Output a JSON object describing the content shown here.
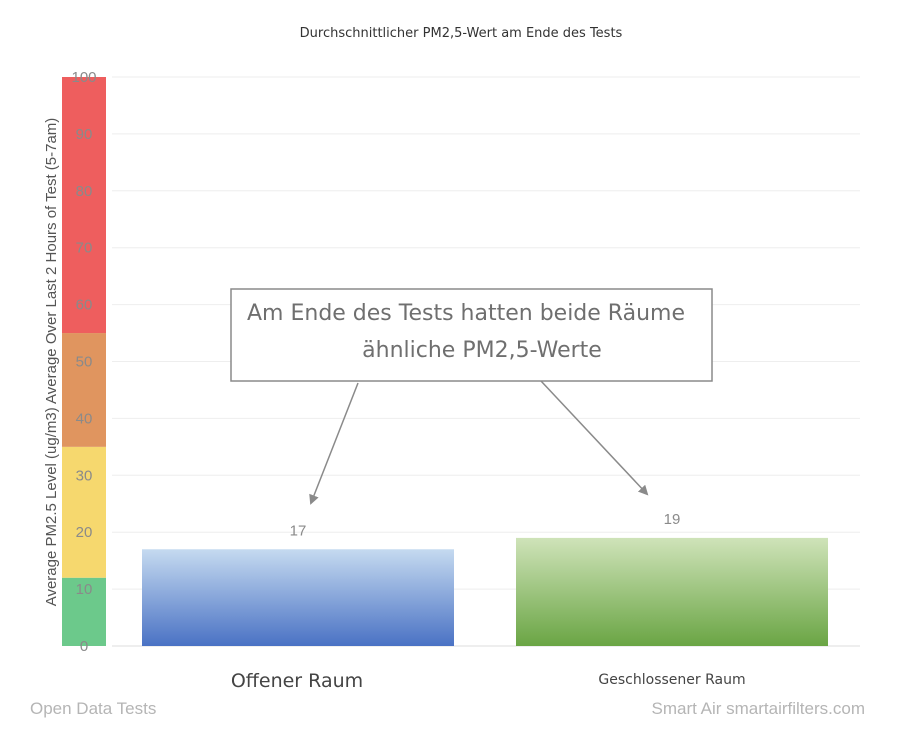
{
  "chart_data": {
    "type": "bar",
    "title": "Durchschnittlicher PM2,5-Wert am Ende des Tests",
    "ylabel": "Average PM2.5 Level (ug/m3) Average Over Last 2 Hours of Test (5-7am)",
    "xlabel": "",
    "categories": [
      "Offener Raum",
      "Geschlossener Raum"
    ],
    "values": [
      17,
      19
    ],
    "data_labels": [
      "17",
      "19"
    ],
    "ylim": [
      0,
      100
    ],
    "yticks": [
      0,
      10,
      20,
      30,
      40,
      50,
      60,
      70,
      80,
      90,
      100
    ],
    "grid": true,
    "bar_colors": [
      {
        "top": "#c5daf0",
        "bottom": "#4a72c4"
      },
      {
        "top": "#cfe3b9",
        "bottom": "#6aa544"
      }
    ],
    "color_bands": [
      {
        "from": 0,
        "to": 12,
        "color": "#6cc98b"
      },
      {
        "from": 12,
        "to": 35,
        "color": "#f6d86e"
      },
      {
        "from": 35,
        "to": 55,
        "color": "#e0955f"
      },
      {
        "from": 55,
        "to": 100,
        "color": "#ee5e5e"
      }
    ],
    "annotation": {
      "lines": [
        "Am Ende des Tests hatten beide Räume",
        "ähnliche PM2,5-Werte"
      ]
    }
  },
  "footer": {
    "left": "Open Data Tests",
    "right": "Smart Air smartairfilters.com"
  }
}
